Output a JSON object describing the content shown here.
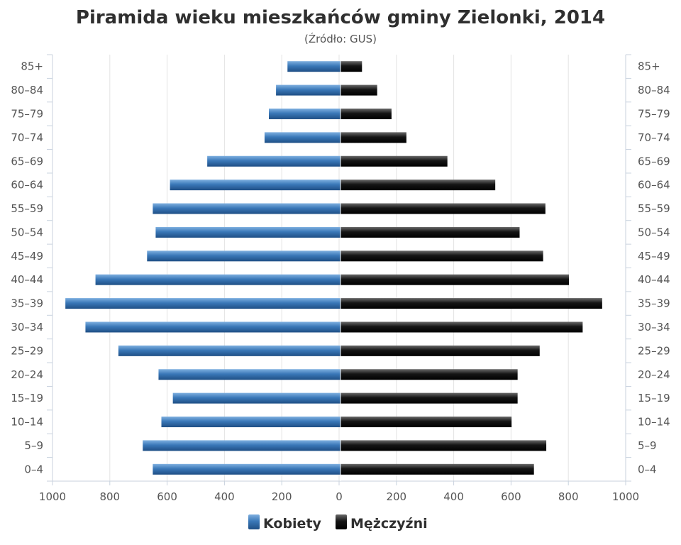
{
  "chart_data": {
    "type": "bar",
    "orientation": "horizontal-population-pyramid",
    "title": "Piramida wieku mieszkańców gminy Zielonki, 2014",
    "subtitle": "(Źródło: GUS)",
    "categories": [
      "0–4",
      "5–9",
      "10–14",
      "15–19",
      "20–24",
      "25–29",
      "30–34",
      "35–39",
      "40–44",
      "45–49",
      "50–54",
      "55–59",
      "60–64",
      "65–69",
      "70–74",
      "75–79",
      "80–84",
      "85+"
    ],
    "series": [
      {
        "name": "Kobiety",
        "side": "left",
        "color": "#3a78b8",
        "values": [
          655,
          690,
          625,
          585,
          635,
          775,
          890,
          960,
          855,
          675,
          645,
          655,
          595,
          465,
          265,
          250,
          225,
          185
        ]
      },
      {
        "name": "Mężczyźni",
        "side": "right",
        "color": "#111111",
        "values": [
          675,
          718,
          597,
          618,
          618,
          695,
          845,
          913,
          797,
          707,
          625,
          715,
          540,
          373,
          230,
          178,
          128,
          75
        ]
      }
    ],
    "x_ticks": [
      "1000",
      "800",
      "600",
      "400",
      "200",
      "0",
      "200",
      "400",
      "600",
      "800",
      "1000"
    ],
    "xlim": [
      -1000,
      1000
    ],
    "grid": true,
    "legend_position": "bottom-center"
  }
}
